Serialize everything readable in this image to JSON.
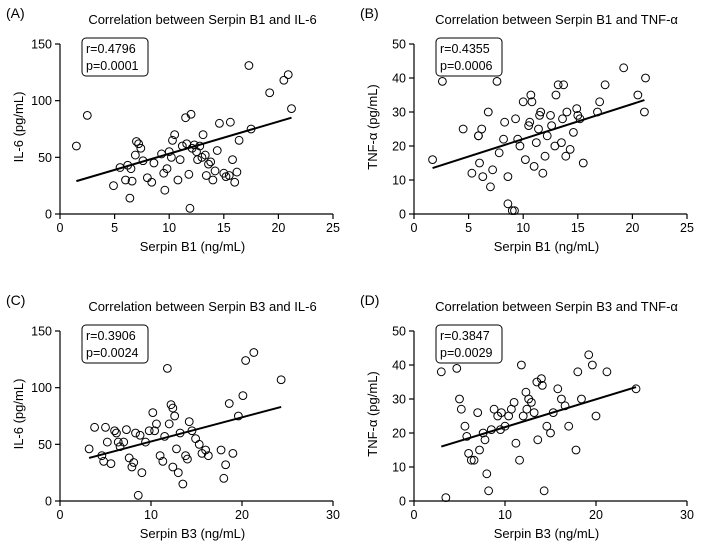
{
  "chart_data": [
    {
      "type": "scatter",
      "panel_label": "(A)",
      "title": "Correlation between Serpin B1 and IL-6",
      "xlabel": "Serpin B1 (ng/mL)",
      "ylabel": "IL-6 (pg/mL)",
      "xlim": [
        0,
        25
      ],
      "ylim": [
        0,
        150
      ],
      "xticks": [
        "0",
        "5",
        "10",
        "15",
        "20",
        "25"
      ],
      "yticks": [
        "0",
        "50",
        "100",
        "150"
      ],
      "stats": {
        "r": "r=0.4796",
        "p": "p=0.0001"
      },
      "trendline": {
        "x": [
          1.5,
          21.2
        ],
        "y": [
          29,
          85
        ]
      },
      "points": [
        [
          1.5,
          60
        ],
        [
          2.5,
          87
        ],
        [
          4.9,
          25
        ],
        [
          5.5,
          41
        ],
        [
          6.0,
          30
        ],
        [
          6.2,
          43
        ],
        [
          6.4,
          14
        ],
        [
          6.5,
          40
        ],
        [
          6.6,
          29
        ],
        [
          6.9,
          52
        ],
        [
          7.0,
          64
        ],
        [
          7.2,
          62
        ],
        [
          7.4,
          58
        ],
        [
          7.6,
          47
        ],
        [
          8.0,
          32
        ],
        [
          8.4,
          28
        ],
        [
          8.6,
          45
        ],
        [
          9.3,
          53
        ],
        [
          9.5,
          36
        ],
        [
          9.6,
          21
        ],
        [
          9.8,
          40
        ],
        [
          10.0,
          55
        ],
        [
          10.2,
          50
        ],
        [
          10.3,
          65
        ],
        [
          10.5,
          70
        ],
        [
          10.8,
          30
        ],
        [
          11.0,
          48
        ],
        [
          11.2,
          60
        ],
        [
          11.5,
          85
        ],
        [
          11.6,
          62
        ],
        [
          11.8,
          35
        ],
        [
          11.9,
          5
        ],
        [
          12.0,
          88
        ],
        [
          12.1,
          58
        ],
        [
          12.3,
          61
        ],
        [
          12.5,
          55
        ],
        [
          12.6,
          48
        ],
        [
          12.8,
          60
        ],
        [
          13.0,
          50
        ],
        [
          13.1,
          70
        ],
        [
          13.3,
          52
        ],
        [
          13.4,
          34
        ],
        [
          13.6,
          44
        ],
        [
          13.8,
          46
        ],
        [
          14.0,
          30
        ],
        [
          14.2,
          38
        ],
        [
          14.4,
          56
        ],
        [
          14.6,
          80
        ],
        [
          15.0,
          36
        ],
        [
          15.2,
          33
        ],
        [
          15.5,
          34
        ],
        [
          15.8,
          48
        ],
        [
          16.0,
          28
        ],
        [
          16.2,
          37
        ],
        [
          16.4,
          65
        ],
        [
          17.3,
          131
        ],
        [
          17.5,
          75
        ],
        [
          19.2,
          107
        ],
        [
          20.5,
          118
        ],
        [
          20.9,
          123
        ],
        [
          21.2,
          93
        ],
        [
          15.6,
          81
        ]
      ]
    },
    {
      "type": "scatter",
      "panel_label": "(B)",
      "title": "Correlation between Serpin B1 and TNF-α",
      "xlabel": "Serpin B1 (ng/mL)",
      "ylabel": "TNF-α (pg/mL)",
      "xlim": [
        0,
        25
      ],
      "ylim": [
        0,
        50
      ],
      "xticks": [
        "0",
        "5",
        "10",
        "15",
        "20",
        "25"
      ],
      "yticks": [
        "0",
        "10",
        "20",
        "30",
        "40",
        "50"
      ],
      "stats": {
        "r": "r=0.4355",
        "p": "p=0.0006"
      },
      "trendline": {
        "x": [
          1.7,
          21.1
        ],
        "y": [
          13.5,
          33.5
        ]
      },
      "points": [
        [
          1.7,
          16
        ],
        [
          2.6,
          39
        ],
        [
          4.5,
          25
        ],
        [
          5.3,
          12
        ],
        [
          5.9,
          23
        ],
        [
          5.9,
          23
        ],
        [
          6.0,
          15
        ],
        [
          6.2,
          25
        ],
        [
          6.3,
          11
        ],
        [
          6.8,
          30
        ],
        [
          7.0,
          8
        ],
        [
          7.2,
          13
        ],
        [
          7.6,
          39
        ],
        [
          7.8,
          18
        ],
        [
          8.3,
          27
        ],
        [
          8.6,
          3
        ],
        [
          8.6,
          11
        ],
        [
          9.0,
          1
        ],
        [
          9.2,
          1
        ],
        [
          9.3,
          28
        ],
        [
          9.5,
          22
        ],
        [
          9.7,
          20
        ],
        [
          10.0,
          33
        ],
        [
          10.2,
          16
        ],
        [
          10.5,
          26
        ],
        [
          10.6,
          27
        ],
        [
          10.8,
          33
        ],
        [
          11.0,
          14
        ],
        [
          11.2,
          21
        ],
        [
          11.4,
          25
        ],
        [
          11.5,
          29
        ],
        [
          11.6,
          30
        ],
        [
          11.8,
          12
        ],
        [
          12.0,
          17
        ],
        [
          12.2,
          23
        ],
        [
          12.5,
          29
        ],
        [
          12.6,
          26
        ],
        [
          13.0,
          35
        ],
        [
          13.2,
          38
        ],
        [
          13.5,
          21
        ],
        [
          13.6,
          28
        ],
        [
          13.9,
          17
        ],
        [
          14.0,
          30
        ],
        [
          14.3,
          19
        ],
        [
          14.6,
          24
        ],
        [
          14.9,
          31
        ],
        [
          15.0,
          29
        ],
        [
          15.2,
          28
        ],
        [
          15.5,
          15
        ],
        [
          16.8,
          30
        ],
        [
          17.0,
          33
        ],
        [
          17.5,
          38
        ],
        [
          19.2,
          43
        ],
        [
          20.5,
          35
        ],
        [
          21.1,
          30
        ],
        [
          21.2,
          40
        ],
        [
          13.7,
          38
        ],
        [
          8.2,
          22
        ],
        [
          10.7,
          35
        ],
        [
          12.9,
          20
        ]
      ]
    },
    {
      "type": "scatter",
      "panel_label": "(C)",
      "title": "Correlation between Serpin B3 and IL-6",
      "xlabel": "Serpin B3 (ng/mL)",
      "ylabel": "IL-6 (pg/mL)",
      "xlim": [
        0,
        30
      ],
      "ylim": [
        0,
        150
      ],
      "xticks": [
        "0",
        "10",
        "20",
        "30"
      ],
      "yticks": [
        "0",
        "50",
        "100",
        "150"
      ],
      "stats": {
        "r": "r=0.3906",
        "p": "p=0.0024"
      },
      "trendline": {
        "x": [
          3.2,
          24.3
        ],
        "y": [
          38,
          83
        ]
      },
      "points": [
        [
          3.2,
          46
        ],
        [
          3.8,
          65
        ],
        [
          4.6,
          40
        ],
        [
          4.8,
          35
        ],
        [
          5.0,
          65
        ],
        [
          5.2,
          52
        ],
        [
          5.6,
          33
        ],
        [
          6.0,
          62
        ],
        [
          6.2,
          60
        ],
        [
          6.4,
          52
        ],
        [
          6.6,
          48
        ],
        [
          7.0,
          52
        ],
        [
          7.3,
          63
        ],
        [
          7.6,
          38
        ],
        [
          7.9,
          30
        ],
        [
          8.1,
          34
        ],
        [
          8.3,
          60
        ],
        [
          8.6,
          5
        ],
        [
          8.8,
          58
        ],
        [
          9.0,
          25
        ],
        [
          9.4,
          52
        ],
        [
          9.8,
          62
        ],
        [
          10.2,
          78
        ],
        [
          10.6,
          68
        ],
        [
          11.0,
          40
        ],
        [
          11.3,
          35
        ],
        [
          11.5,
          57
        ],
        [
          11.8,
          117
        ],
        [
          12.0,
          68
        ],
        [
          12.2,
          85
        ],
        [
          12.4,
          82
        ],
        [
          12.6,
          75
        ],
        [
          12.8,
          46
        ],
        [
          13.0,
          25
        ],
        [
          13.2,
          60
        ],
        [
          13.5,
          15
        ],
        [
          13.8,
          40
        ],
        [
          14.0,
          37
        ],
        [
          14.2,
          70
        ],
        [
          14.5,
          62
        ],
        [
          14.9,
          55
        ],
        [
          15.3,
          50
        ],
        [
          15.6,
          42
        ],
        [
          16.0,
          45
        ],
        [
          16.3,
          40
        ],
        [
          17.7,
          45
        ],
        [
          18.0,
          20
        ],
        [
          18.2,
          32
        ],
        [
          18.6,
          86
        ],
        [
          19.0,
          42
        ],
        [
          19.6,
          75
        ],
        [
          20.1,
          93
        ],
        [
          20.4,
          124
        ],
        [
          21.3,
          131
        ],
        [
          24.3,
          107
        ],
        [
          12.4,
          30
        ],
        [
          10.4,
          62
        ]
      ]
    },
    {
      "type": "scatter",
      "panel_label": "(D)",
      "title": "Correlation between Serpin B3 and TNF-α",
      "xlabel": "Serpin B3 (ng/mL)",
      "ylabel": "TNF-α (pg/mL)",
      "xlim": [
        0,
        30
      ],
      "ylim": [
        0,
        50
      ],
      "xticks": [
        "0",
        "10",
        "20",
        "30"
      ],
      "yticks": [
        "0",
        "10",
        "20",
        "30",
        "40",
        "50"
      ],
      "stats": {
        "r": "r=0.3847",
        "p": "p=0.0029"
      },
      "trendline": {
        "x": [
          3.0,
          24.4
        ],
        "y": [
          16,
          33.5
        ]
      },
      "points": [
        [
          3.0,
          38
        ],
        [
          3.5,
          1
        ],
        [
          4.7,
          39
        ],
        [
          5.0,
          30
        ],
        [
          5.2,
          27
        ],
        [
          5.6,
          22
        ],
        [
          5.8,
          19
        ],
        [
          6.0,
          14
        ],
        [
          6.3,
          12
        ],
        [
          6.6,
          12
        ],
        [
          7.0,
          26
        ],
        [
          7.2,
          15
        ],
        [
          7.6,
          20
        ],
        [
          7.8,
          18
        ],
        [
          8.0,
          8
        ],
        [
          8.2,
          3
        ],
        [
          8.5,
          21
        ],
        [
          8.8,
          27
        ],
        [
          9.2,
          25
        ],
        [
          9.5,
          21
        ],
        [
          10.0,
          22
        ],
        [
          10.4,
          25
        ],
        [
          10.7,
          27
        ],
        [
          11.0,
          29
        ],
        [
          11.2,
          17
        ],
        [
          11.6,
          12
        ],
        [
          11.8,
          40
        ],
        [
          12.0,
          25
        ],
        [
          12.3,
          32
        ],
        [
          12.6,
          30
        ],
        [
          12.9,
          29
        ],
        [
          13.2,
          26
        ],
        [
          13.6,
          18
        ],
        [
          14.0,
          36
        ],
        [
          14.1,
          34
        ],
        [
          14.3,
          3
        ],
        [
          14.6,
          22
        ],
        [
          15.0,
          20
        ],
        [
          15.3,
          26
        ],
        [
          15.8,
          33
        ],
        [
          16.2,
          30
        ],
        [
          16.6,
          28
        ],
        [
          17.0,
          22
        ],
        [
          17.8,
          15
        ],
        [
          18.0,
          38
        ],
        [
          18.4,
          30
        ],
        [
          19.2,
          43
        ],
        [
          19.6,
          40
        ],
        [
          20.0,
          25
        ],
        [
          21.2,
          38
        ],
        [
          24.4,
          33
        ],
        [
          9.6,
          26
        ],
        [
          13.5,
          35
        ],
        [
          12.4,
          27
        ]
      ]
    }
  ]
}
